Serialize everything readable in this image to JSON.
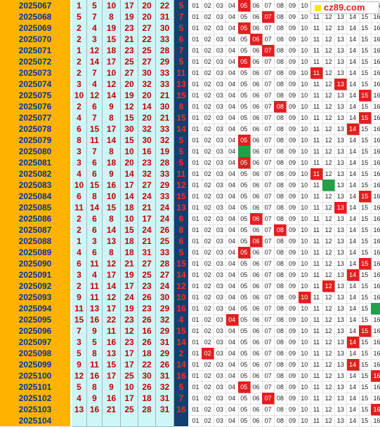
{
  "logo_text": "cz89.com",
  "colors": {
    "issue_bg": "#FFB300",
    "red_ball_bg": "#CFF6F6",
    "blue_col_bg": "#123F6E",
    "hit": "#E21F1F",
    "pred": "#22A04A"
  },
  "rows": [
    {
      "issue": "2025067",
      "reds": [
        1,
        5,
        10,
        17,
        20,
        22
      ],
      "blue": 5,
      "hits": [
        5
      ],
      "pred": []
    },
    {
      "issue": "2025068",
      "reds": [
        5,
        7,
        8,
        19,
        20,
        31
      ],
      "blue": 7,
      "hits": [
        7
      ],
      "pred": []
    },
    {
      "issue": "2025069",
      "reds": [
        2,
        4,
        19,
        23,
        27,
        30
      ],
      "blue": 5,
      "hits": [
        5
      ],
      "pred": []
    },
    {
      "issue": "2025070",
      "reds": [
        2,
        3,
        15,
        21,
        22,
        33
      ],
      "blue": 6,
      "hits": [
        6
      ],
      "pred": []
    },
    {
      "issue": "2025071",
      "reds": [
        1,
        12,
        18,
        23,
        25,
        28
      ],
      "blue": 7,
      "hits": [
        7
      ],
      "pred": []
    },
    {
      "issue": "2025072",
      "reds": [
        2,
        14,
        17,
        25,
        27,
        29
      ],
      "blue": 5,
      "hits": [
        5
      ],
      "pred": []
    },
    {
      "issue": "2025073",
      "reds": [
        2,
        7,
        10,
        27,
        30,
        33
      ],
      "blue": 11,
      "hits": [
        11
      ],
      "pred": []
    },
    {
      "issue": "2025074",
      "reds": [
        3,
        4,
        12,
        20,
        32,
        33
      ],
      "blue": 13,
      "hits": [
        13
      ],
      "pred": []
    },
    {
      "issue": "2025075",
      "reds": [
        10,
        12,
        14,
        19,
        20,
        21
      ],
      "blue": 15,
      "hits": [
        15
      ],
      "pred": []
    },
    {
      "issue": "2025076",
      "reds": [
        2,
        6,
        9,
        12,
        14,
        30
      ],
      "blue": 8,
      "hits": [
        8
      ],
      "pred": []
    },
    {
      "issue": "2025077",
      "reds": [
        4,
        7,
        8,
        15,
        20,
        21
      ],
      "blue": 15,
      "hits": [
        15
      ],
      "pred": []
    },
    {
      "issue": "2025078",
      "reds": [
        6,
        15,
        17,
        30,
        32,
        33
      ],
      "blue": 14,
      "hits": [
        14
      ],
      "pred": []
    },
    {
      "issue": "2025079",
      "reds": [
        8,
        11,
        14,
        15,
        30,
        32
      ],
      "blue": 5,
      "hits": [
        5
      ],
      "pred": []
    },
    {
      "issue": "2025080",
      "reds": [
        3,
        7,
        8,
        10,
        16,
        19
      ],
      "blue": 5,
      "hits": [],
      "pred": [
        5
      ]
    },
    {
      "issue": "2025081",
      "reds": [
        3,
        6,
        18,
        20,
        23,
        28
      ],
      "blue": 5,
      "hits": [
        5
      ],
      "pred": []
    },
    {
      "issue": "2025082",
      "reds": [
        4,
        6,
        9,
        14,
        32,
        33
      ],
      "blue": 11,
      "hits": [
        11
      ],
      "pred": []
    },
    {
      "issue": "2025083",
      "reds": [
        10,
        15,
        16,
        17,
        27,
        29
      ],
      "blue": 12,
      "hits": [],
      "pred": [
        12
      ]
    },
    {
      "issue": "2025084",
      "reds": [
        6,
        8,
        10,
        14,
        24,
        33
      ],
      "blue": 15,
      "hits": [
        15
      ],
      "pred": []
    },
    {
      "issue": "2025085",
      "reds": [
        11,
        14,
        15,
        18,
        21,
        24
      ],
      "blue": 13,
      "hits": [
        13
      ],
      "pred": []
    },
    {
      "issue": "2025086",
      "reds": [
        2,
        6,
        8,
        10,
        17,
        24
      ],
      "blue": 6,
      "hits": [
        6
      ],
      "pred": []
    },
    {
      "issue": "2025087",
      "reds": [
        2,
        6,
        14,
        15,
        24,
        26
      ],
      "blue": 8,
      "hits": [
        8
      ],
      "pred": []
    },
    {
      "issue": "2025088",
      "reds": [
        1,
        3,
        13,
        18,
        21,
        25
      ],
      "blue": 6,
      "hits": [
        6
      ],
      "pred": []
    },
    {
      "issue": "2025089",
      "reds": [
        4,
        6,
        8,
        18,
        31,
        33
      ],
      "blue": 5,
      "hits": [
        5
      ],
      "pred": []
    },
    {
      "issue": "2025090",
      "reds": [
        6,
        11,
        12,
        21,
        27,
        28
      ],
      "blue": 15,
      "hits": [
        15
      ],
      "pred": []
    },
    {
      "issue": "2025091",
      "reds": [
        3,
        4,
        17,
        19,
        25,
        27
      ],
      "blue": 14,
      "hits": [
        14
      ],
      "pred": []
    },
    {
      "issue": "2025092",
      "reds": [
        2,
        11,
        14,
        17,
        23,
        24
      ],
      "blue": 12,
      "hits": [
        12
      ],
      "pred": []
    },
    {
      "issue": "2025093",
      "reds": [
        9,
        11,
        12,
        24,
        26,
        30
      ],
      "blue": 10,
      "hits": [
        10
      ],
      "pred": []
    },
    {
      "issue": "2025094",
      "reds": [
        11,
        13,
        17,
        19,
        23,
        29
      ],
      "blue": 16,
      "hits": [],
      "pred": [
        16
      ]
    },
    {
      "issue": "2025095",
      "reds": [
        15,
        16,
        22,
        23,
        26,
        32
      ],
      "blue": 4,
      "hits": [
        4
      ],
      "pred": []
    },
    {
      "issue": "2025096",
      "reds": [
        7,
        9,
        11,
        12,
        16,
        29
      ],
      "blue": 15,
      "hits": [
        15
      ],
      "pred": []
    },
    {
      "issue": "2025097",
      "reds": [
        3,
        5,
        16,
        23,
        26,
        31
      ],
      "blue": 14,
      "hits": [
        14
      ],
      "pred": []
    },
    {
      "issue": "2025098",
      "reds": [
        5,
        8,
        13,
        17,
        18,
        29
      ],
      "blue": 2,
      "hits": [
        2
      ],
      "pred": []
    },
    {
      "issue": "2025099",
      "reds": [
        9,
        11,
        15,
        17,
        22,
        26
      ],
      "blue": 14,
      "hits": [
        14
      ],
      "pred": []
    },
    {
      "issue": "2025100",
      "reds": [
        12,
        16,
        17,
        25,
        30,
        31
      ],
      "blue": 16,
      "hits": [
        16
      ],
      "pred": []
    },
    {
      "issue": "2025101",
      "reds": [
        5,
        8,
        9,
        10,
        26,
        32
      ],
      "blue": 5,
      "hits": [
        5
      ],
      "pred": []
    },
    {
      "issue": "2025102",
      "reds": [
        4,
        9,
        16,
        17,
        18,
        31
      ],
      "blue": 7,
      "hits": [
        7
      ],
      "pred": []
    },
    {
      "issue": "2025103",
      "reds": [
        13,
        16,
        21,
        25,
        28,
        31
      ],
      "blue": 16,
      "hits": [
        16
      ],
      "pred": []
    },
    {
      "issue": "2025104",
      "reds": [],
      "blue": null,
      "hits": [],
      "pred": []
    }
  ]
}
